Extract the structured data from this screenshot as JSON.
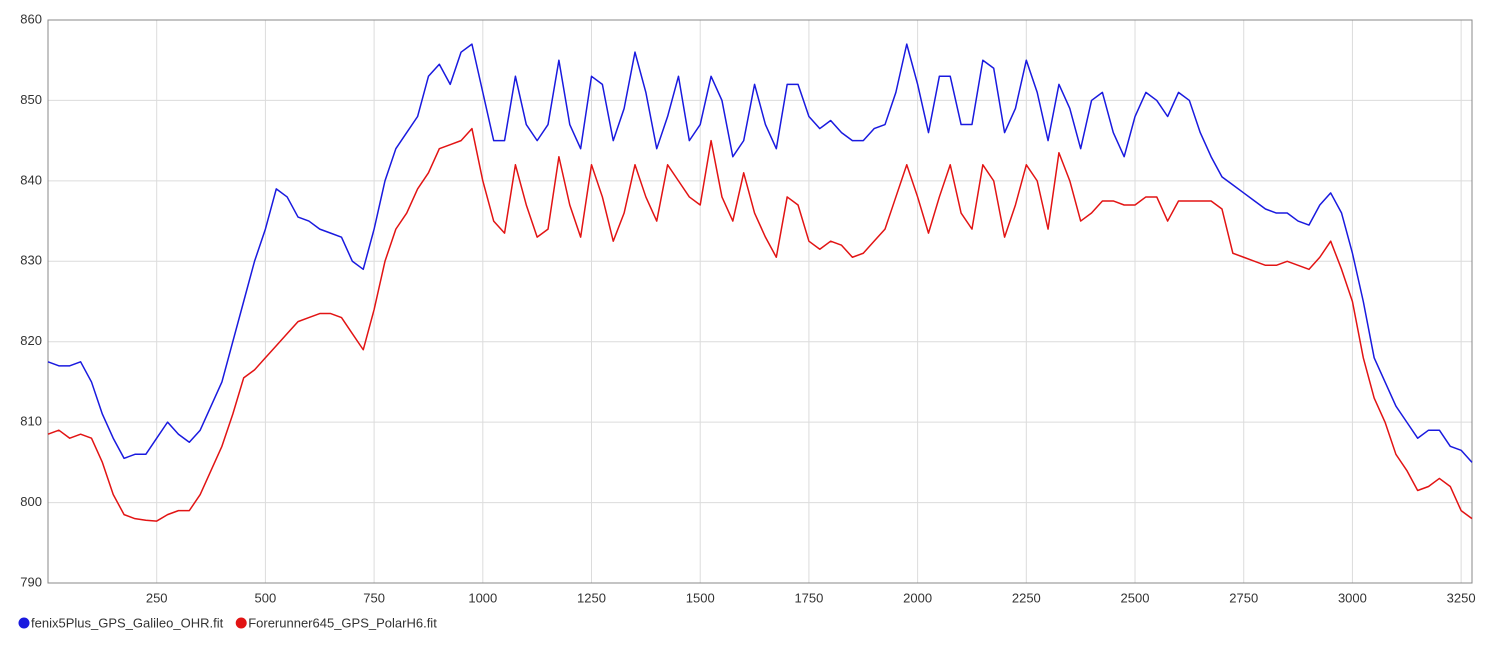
{
  "chart_data": {
    "type": "line",
    "x": [
      0,
      25,
      50,
      75,
      100,
      125,
      150,
      175,
      200,
      225,
      250,
      275,
      300,
      325,
      350,
      375,
      400,
      425,
      450,
      475,
      500,
      525,
      550,
      575,
      600,
      625,
      650,
      675,
      700,
      725,
      750,
      775,
      800,
      825,
      850,
      875,
      900,
      925,
      950,
      975,
      1000,
      1025,
      1050,
      1075,
      1100,
      1125,
      1150,
      1175,
      1200,
      1225,
      1250,
      1275,
      1300,
      1325,
      1350,
      1375,
      1400,
      1425,
      1450,
      1475,
      1500,
      1525,
      1550,
      1575,
      1600,
      1625,
      1650,
      1675,
      1700,
      1725,
      1750,
      1775,
      1800,
      1825,
      1850,
      1875,
      1900,
      1925,
      1950,
      1975,
      2000,
      2025,
      2050,
      2075,
      2100,
      2125,
      2150,
      2175,
      2200,
      2225,
      2250,
      2275,
      2300,
      2325,
      2350,
      2375,
      2400,
      2425,
      2450,
      2475,
      2500,
      2525,
      2550,
      2575,
      2600,
      2625,
      2650,
      2675,
      2700,
      2725,
      2750,
      2775,
      2800,
      2825,
      2850,
      2875,
      2900,
      2925,
      2950,
      2975,
      3000,
      3025,
      3050,
      3075,
      3100,
      3125,
      3150,
      3175,
      3200,
      3225,
      3250,
      3275
    ],
    "series": [
      {
        "name": "fenix5Plus_GPS_Galileo_OHR.fit",
        "color": "#1a1adf",
        "values": [
          817.5,
          817,
          817,
          817.5,
          815,
          811,
          808,
          805.5,
          806,
          806,
          808,
          810,
          808.5,
          807.5,
          809,
          812,
          815,
          820,
          825,
          830,
          834,
          839,
          838,
          835.5,
          835,
          834,
          833.5,
          833,
          830,
          829,
          834,
          840,
          844,
          846,
          848,
          853,
          854.5,
          852,
          856,
          857,
          851,
          845,
          845,
          853,
          847,
          845,
          847,
          855,
          847,
          844,
          853,
          852,
          845,
          849,
          856,
          851,
          844,
          848,
          853,
          845,
          847,
          853,
          850,
          843,
          845,
          852,
          847,
          844,
          852,
          852,
          848,
          846.5,
          847.5,
          846,
          845,
          845,
          846.5,
          847,
          851,
          857,
          852,
          846,
          853,
          853,
          847,
          847,
          855,
          854,
          846,
          849,
          855,
          851,
          845,
          852,
          849,
          844,
          850,
          851,
          846,
          843,
          848,
          851,
          850,
          848,
          851,
          850,
          846,
          843,
          840.5,
          839.5,
          838.5,
          837.5,
          836.5,
          836,
          836,
          835,
          834.5,
          837,
          838.5,
          836,
          831,
          825,
          818,
          815,
          812,
          810,
          808,
          809,
          809,
          807,
          806.5,
          805
        ]
      },
      {
        "name": "Forerunner645_GPS_PolarH6.fit",
        "color": "#e21414",
        "values": [
          808.5,
          809,
          808,
          808.5,
          808,
          805,
          801,
          798.5,
          798,
          797.8,
          797.7,
          798.5,
          799,
          799,
          801,
          804,
          807,
          811,
          815.5,
          816.5,
          818,
          819.5,
          821,
          822.5,
          823,
          823.5,
          823.5,
          823,
          821,
          819,
          824,
          830,
          834,
          836,
          839,
          841,
          844,
          844.5,
          845,
          846.5,
          840,
          835,
          833.5,
          842,
          837,
          833,
          834,
          843,
          837,
          833,
          842,
          838,
          832.5,
          836,
          842,
          838,
          835,
          842,
          840,
          838,
          837,
          845,
          838,
          835,
          841,
          836,
          833,
          830.5,
          838,
          837,
          832.5,
          831.5,
          832.5,
          832,
          830.5,
          831,
          832.5,
          834,
          838,
          842,
          838,
          833.5,
          838,
          842,
          836,
          834,
          842,
          840,
          833,
          837,
          842,
          840,
          834,
          843.5,
          840,
          835,
          836,
          837.5,
          837.5,
          837,
          837,
          838,
          838,
          835,
          837.5,
          837.5,
          837.5,
          837.5,
          836.5,
          831,
          830.5,
          830,
          829.5,
          829.5,
          830,
          829.5,
          829,
          830.5,
          832.5,
          829,
          825,
          818,
          813,
          810,
          806,
          804,
          801.5,
          802,
          803,
          802,
          799,
          798
        ]
      }
    ],
    "xlim": [
      0,
      3275
    ],
    "ylim": [
      790,
      860
    ],
    "xticks": [
      250,
      500,
      750,
      1000,
      1250,
      1500,
      1750,
      2000,
      2250,
      2500,
      2750,
      3000,
      3250
    ],
    "yticks": [
      790,
      800,
      810,
      820,
      830,
      840,
      850,
      860
    ],
    "grid": true,
    "legend": "bottom-left"
  }
}
